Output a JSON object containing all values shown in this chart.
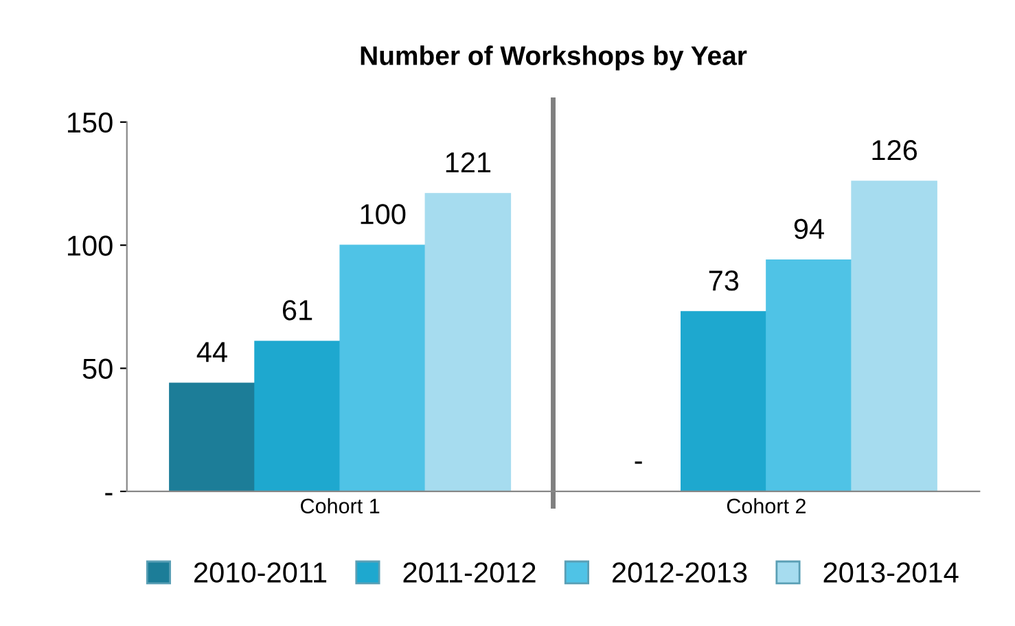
{
  "chart_data": {
    "type": "bar",
    "title": "Number of Workshops by Year",
    "categories": [
      "Cohort 1",
      "Cohort 2"
    ],
    "series": [
      {
        "name": "2010-2011",
        "color": "#1c7d98",
        "values": [
          44,
          0
        ],
        "value_labels": [
          "44",
          "-"
        ]
      },
      {
        "name": "2011-2012",
        "color": "#1ea8cf",
        "values": [
          61,
          73
        ],
        "value_labels": [
          "61",
          "73"
        ]
      },
      {
        "name": "2012-2013",
        "color": "#4fc3e6",
        "values": [
          100,
          94
        ],
        "value_labels": [
          "100",
          "94"
        ]
      },
      {
        "name": "2013-2014",
        "color": "#a6dcef",
        "values": [
          121,
          126
        ],
        "value_labels": [
          "121",
          "126"
        ]
      }
    ],
    "ylim": [
      0,
      150
    ],
    "yticks": [
      {
        "value": 0,
        "label": "-"
      },
      50,
      100,
      150
    ],
    "grid": false,
    "legend": "bottom"
  }
}
